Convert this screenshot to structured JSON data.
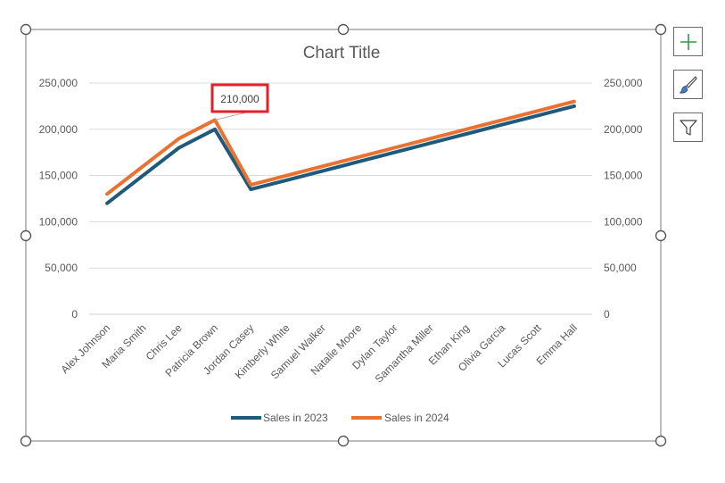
{
  "chart_data": {
    "type": "line",
    "title": "Chart Title",
    "categories": [
      "Alex Johnson",
      "Maria Smith",
      "Chris Lee",
      "Patricia Brown",
      "Jordan Casey",
      "Kimberly White",
      "Samuel Walker",
      "Natalie Moore",
      "Dylan Taylor",
      "Samantha Miller",
      "Ethan King",
      "Olivia Garcia",
      "Lucas Scott",
      "Emma Hall"
    ],
    "series": [
      {
        "name": "Sales in 2023",
        "color": "#1f5a7a",
        "values": [
          120000,
          150000,
          180000,
          200000,
          135000,
          145000,
          155000,
          165000,
          175000,
          185000,
          195000,
          205000,
          215000,
          225000
        ]
      },
      {
        "name": "Sales in 2024",
        "color": "#e97132",
        "values": [
          130000,
          160000,
          190000,
          210000,
          140000,
          150000,
          160000,
          170000,
          180000,
          190000,
          200000,
          210000,
          220000,
          230000
        ]
      }
    ],
    "ylim": [
      0,
      250000
    ],
    "yticks": [
      "0",
      "50,000",
      "100,000",
      "150,000",
      "200,000",
      "250,000"
    ],
    "secondary_axis": true,
    "grid": true,
    "legend": "bottom",
    "callout": {
      "text": "210,000",
      "series": 1,
      "category": 3,
      "border_color": "#e41f26"
    }
  },
  "toolbar": {
    "buttons": [
      {
        "name": "chart-elements-button",
        "icon": "plus-icon"
      },
      {
        "name": "chart-styles-button",
        "icon": "paintbrush-icon"
      },
      {
        "name": "chart-filters-button",
        "icon": "funnel-icon"
      }
    ]
  }
}
